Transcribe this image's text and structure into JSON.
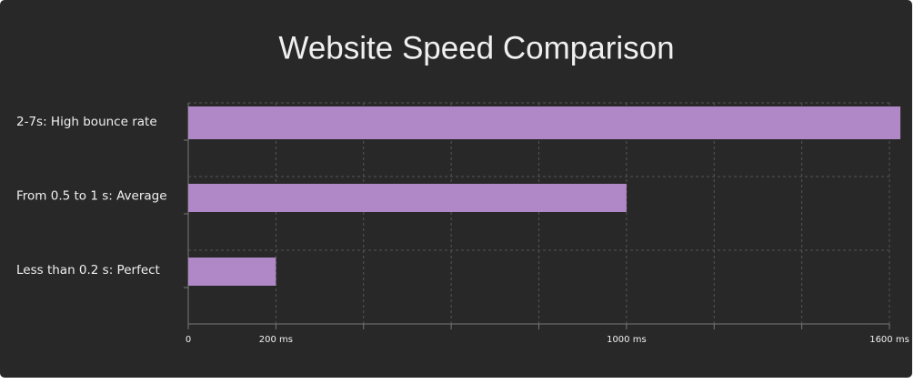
{
  "chart_data": {
    "type": "hbar",
    "title": "Website Speed Comparison",
    "categories": [
      "2-7s: High bounce rate",
      "From 0.5 to 1 s: Average",
      "Less than 0.2 s: Perfect"
    ],
    "values": [
      1625,
      1000,
      200
    ],
    "color": "#b088c8",
    "xlim": [
      0,
      1600
    ],
    "xticks": [
      0,
      {
        "value": 200,
        "label": "200 ms"
      },
      {
        "value": 400,
        "label": null
      },
      {
        "value": 600,
        "label": null
      },
      {
        "value": 800,
        "label": null
      },
      {
        "value": 1000,
        "label": "1000 ms"
      },
      {
        "value": 1200,
        "label": null
      },
      {
        "value": 1400,
        "label": null
      },
      {
        "value": 1600,
        "label": "1600 ms"
      }
    ],
    "grid": true
  }
}
